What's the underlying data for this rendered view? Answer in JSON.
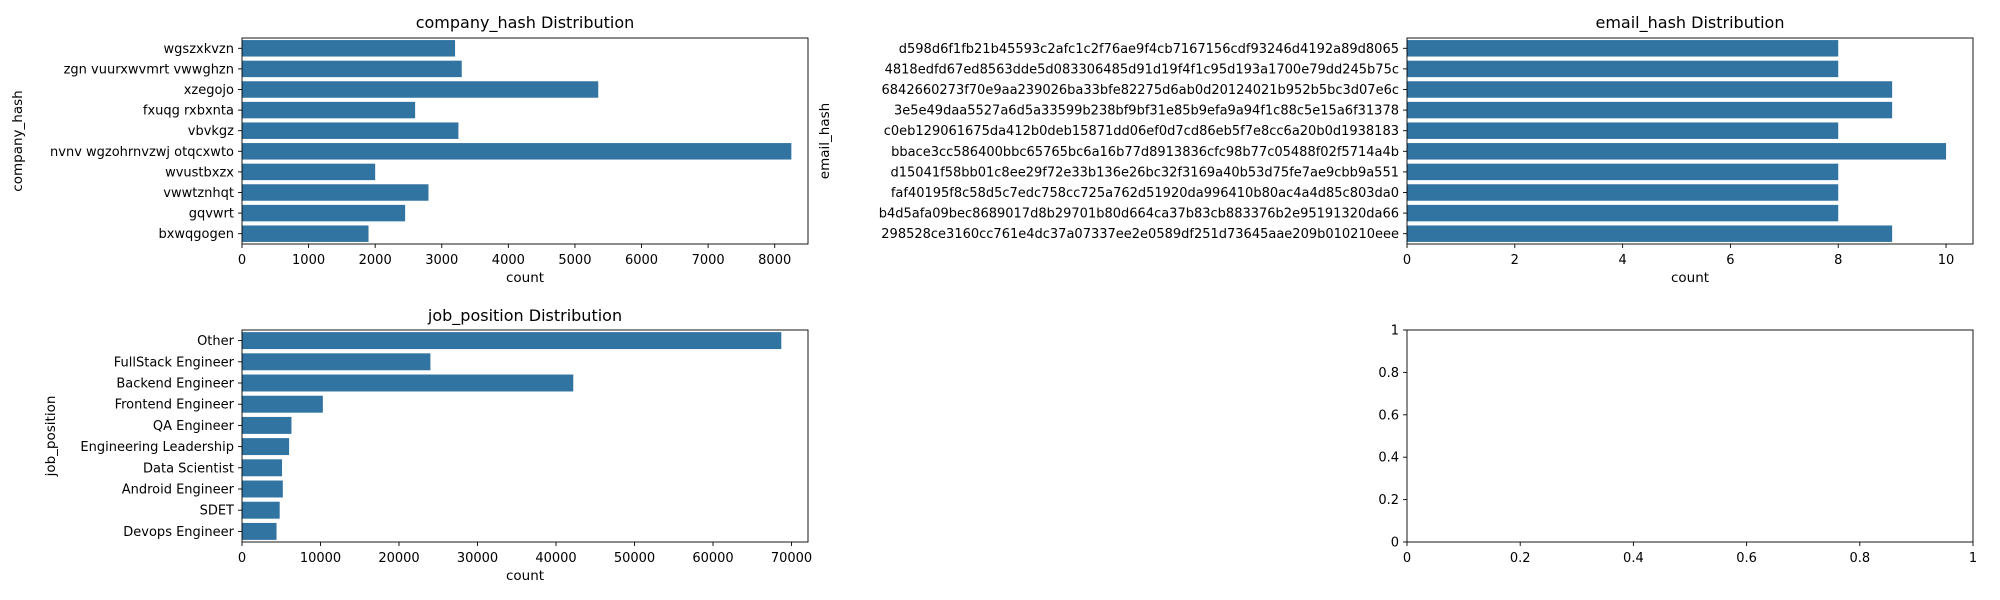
{
  "chart_data": [
    {
      "type": "bar",
      "orientation": "horizontal",
      "title": "company_hash Distribution",
      "xlabel": "count",
      "ylabel": "company_hash",
      "categories": [
        "wgszxkvzn",
        "zgn vuurxwvmrt vwwghzn",
        "xzegojo",
        "fxuqg rxbxnta",
        "vbvkgz",
        "nvnv wgzohrnvzwj otqcxwto",
        "wvustbxzx",
        "vwwtznhqt",
        "gqvwrt",
        "bxwqgogen"
      ],
      "values": [
        3200,
        3300,
        5350,
        2600,
        3250,
        8250,
        2000,
        2800,
        2450,
        1900
      ],
      "xlim": [
        0,
        8500
      ],
      "xticks": [
        0,
        1000,
        2000,
        3000,
        4000,
        5000,
        6000,
        7000,
        8000
      ],
      "color": "#3274a1"
    },
    {
      "type": "bar",
      "orientation": "horizontal",
      "title": "email_hash Distribution",
      "xlabel": "count",
      "ylabel": "email_hash",
      "categories": [
        "d598d6f1fb21b45593c2afc1c2f76ae9f4cb7167156cdf93246d4192a89d8065",
        "4818edfd67ed8563dde5d083306485d91d19f4f1c95d193a1700e79dd245b75c",
        "6842660273f70e9aa239026ba33bfe82275d6ab0d20124021b952b5bc3d07e6c",
        "3e5e49daa5527a6d5a33599b238bf9bf31e85b9efa9a94f1c88c5e15a6f31378",
        "c0eb129061675da412b0deb15871dd06ef0d7cd86eb5f7e8cc6a20b0d1938183",
        "bbace3cc586400bbc65765bc6a16b77d8913836cfc98b77c05488f02f5714a4b",
        "d15041f58bb01c8ee29f72e33b136e26bc32f3169a40b53d75fe7ae9cbb9a551",
        "faf40195f8c58d5c7edc758cc725a762d51920da996410b80ac4a4d85c803da0",
        "b4d5afa09bec8689017d8b29701b80d664ca37b83cb883376b2e95191320da66",
        "298528ce3160cc761e4dc37a07337ee2e0589df251d73645aae209b010210eee"
      ],
      "values": [
        8,
        8,
        9,
        9,
        8,
        10,
        8,
        8,
        8,
        9
      ],
      "xlim": [
        0,
        10.5
      ],
      "xticks": [
        0,
        2,
        4,
        6,
        8,
        10
      ],
      "color": "#3274a1"
    },
    {
      "type": "bar",
      "orientation": "horizontal",
      "title": "job_position Distribution",
      "xlabel": "count",
      "ylabel": "job_position",
      "categories": [
        "Other",
        "FullStack Engineer",
        "Backend Engineer",
        "Frontend Engineer",
        "QA Engineer",
        "Engineering Leadership",
        "Data Scientist",
        "Android Engineer",
        "SDET",
        "Devops Engineer"
      ],
      "values": [
        68700,
        24000,
        42200,
        10300,
        6300,
        6000,
        5100,
        5200,
        4800,
        4400
      ],
      "xlim": [
        0,
        72100
      ],
      "xticks": [
        0,
        10000,
        20000,
        30000,
        40000,
        50000,
        60000,
        70000
      ],
      "color": "#3274a1"
    },
    {
      "type": "empty",
      "title": "",
      "xlabel": "",
      "ylabel": "",
      "xlim": [
        0,
        1
      ],
      "ylim": [
        0,
        1
      ],
      "xticks": [
        0.0,
        0.2,
        0.4,
        0.6,
        0.8,
        1.0
      ],
      "yticks": [
        0.0,
        0.2,
        0.4,
        0.6,
        0.8,
        1.0
      ]
    }
  ]
}
